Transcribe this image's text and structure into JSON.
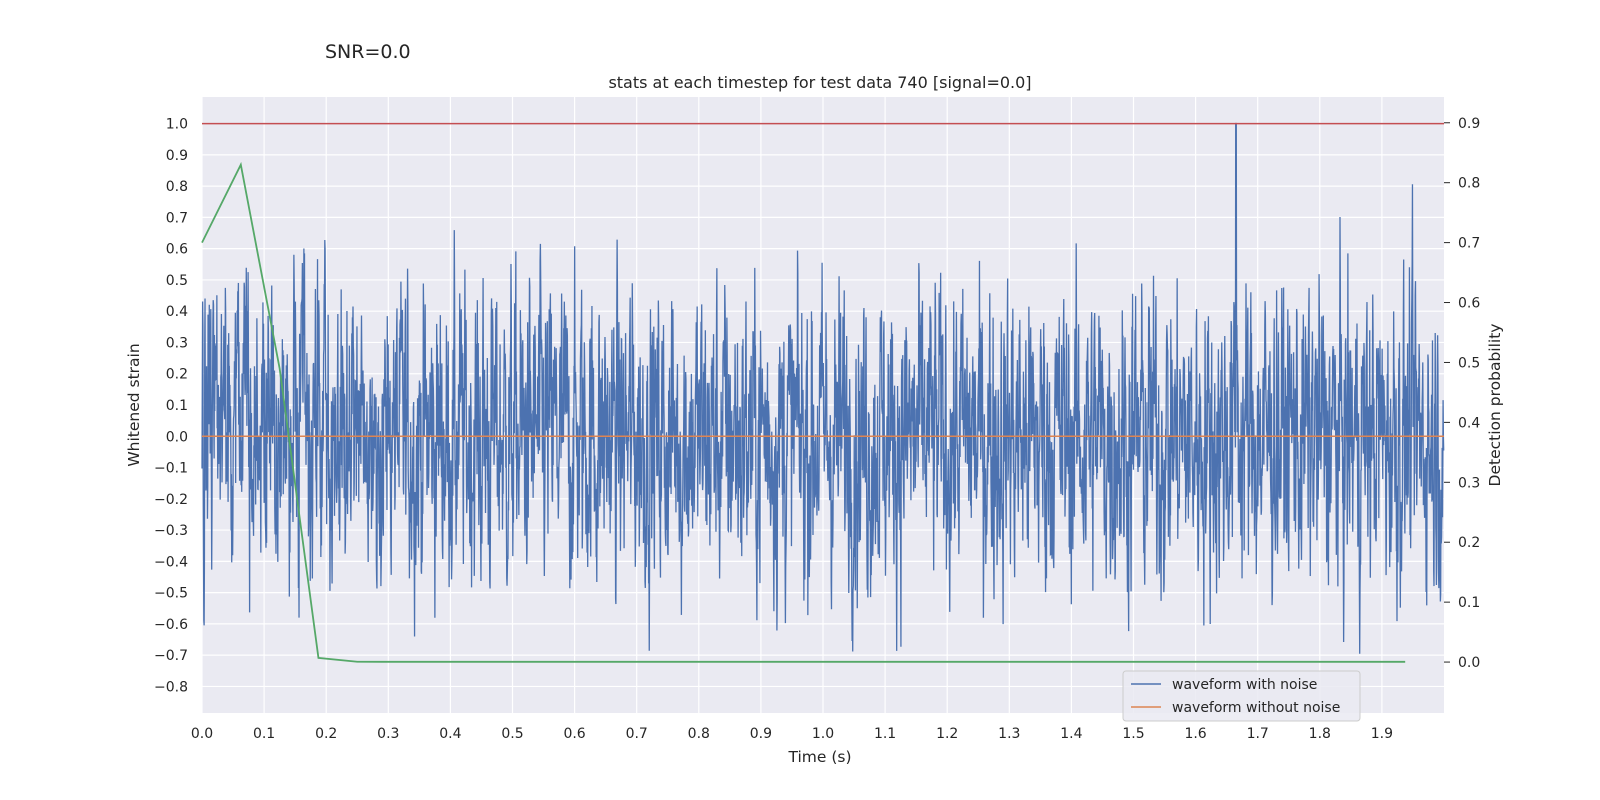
{
  "suptitle": "SNR=0.0",
  "chart_data": {
    "type": "line",
    "title": "stats at each timestep for test data 740 [signal=0.0]",
    "xlabel": "Time (s)",
    "ylabel": "Whitened strain",
    "y2label": "Detection probability",
    "xlim": [
      0.0,
      2.0
    ],
    "ylim": [
      -0.885,
      1.085
    ],
    "y2lim": [
      -0.085,
      0.943
    ],
    "x_ticks": [
      "0.0",
      "0.1",
      "0.2",
      "0.3",
      "0.4",
      "0.5",
      "0.6",
      "0.7",
      "0.8",
      "0.9",
      "1.0",
      "1.1",
      "1.2",
      "1.3",
      "1.4",
      "1.5",
      "1.6",
      "1.7",
      "1.8",
      "1.9"
    ],
    "y_ticks": [
      "1.0",
      "0.9",
      "0.8",
      "0.7",
      "0.6",
      "0.5",
      "0.4",
      "0.3",
      "0.2",
      "0.1",
      "0.0",
      "−0.1",
      "−0.2",
      "−0.3",
      "−0.4",
      "−0.5",
      "−0.6",
      "−0.7",
      "−0.8"
    ],
    "y2_ticks": [
      "0.9",
      "0.8",
      "0.7",
      "0.6",
      "0.5",
      "0.4",
      "0.3",
      "0.2",
      "0.1",
      "0.0"
    ],
    "grid": true,
    "legend_position": "lower-right",
    "series": [
      {
        "name": "waveform with noise",
        "axis": "left",
        "color": "#4c72b0",
        "noise_amplitude": 0.22,
        "range_observed": [
          -0.8,
          1.0
        ],
        "peak_at": 1.665,
        "samples": 4096
      },
      {
        "name": "waveform without noise",
        "axis": "left",
        "color": "#dd8452",
        "values_x": [
          0.0,
          2.0
        ],
        "values_y": [
          0.0,
          0.0
        ]
      },
      {
        "axis": "left",
        "color": "#c44e52",
        "values_x": [
          0.0,
          2.0
        ],
        "values_y": [
          1.0,
          1.0
        ]
      },
      {
        "axis": "right",
        "color": "#55a868",
        "x": [
          0.0,
          0.0625,
          0.125,
          0.1875,
          0.25,
          0.3125,
          0.375,
          0.4375,
          0.5,
          0.5625,
          0.625,
          0.6875,
          0.75,
          0.8125,
          0.875,
          0.9375,
          1.0,
          1.0625,
          1.125,
          1.1875,
          1.25,
          1.3125,
          1.375,
          1.4375,
          1.5,
          1.5625,
          1.625,
          1.6875,
          1.75,
          1.8125,
          1.875,
          1.9375
        ],
        "y": [
          0.7,
          0.83,
          0.49,
          0.007,
          0.0005,
          0.0004,
          0.0004,
          0.0004,
          0.0004,
          0.0004,
          0.0004,
          0.0004,
          0.0004,
          0.0004,
          0.0004,
          0.0004,
          0.0004,
          0.0004,
          0.0004,
          0.0004,
          0.0004,
          0.0004,
          0.0004,
          0.0004,
          0.0004,
          0.0004,
          0.0004,
          0.0004,
          0.0004,
          0.0004,
          0.0004,
          0.0004
        ]
      }
    ]
  }
}
